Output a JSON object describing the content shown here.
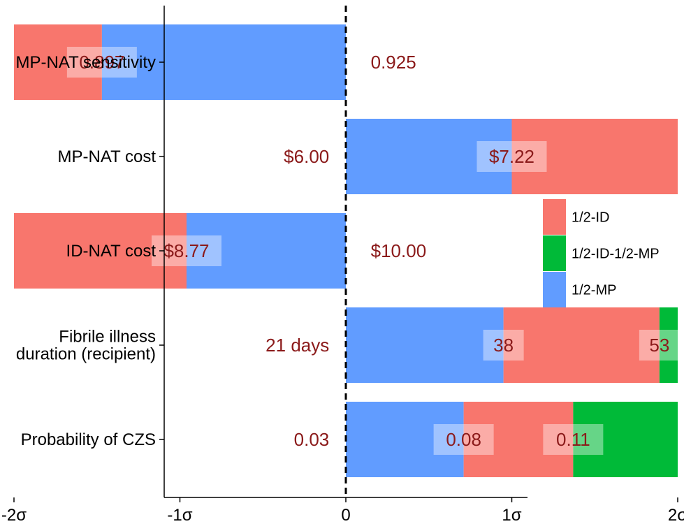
{
  "chart_data": {
    "type": "bar",
    "orientation": "horizontal",
    "xlabel": "",
    "ylabel": "",
    "xlim": [
      -2.2,
      2.2
    ],
    "x_ticks": [
      {
        "value": -2,
        "label": "-2σ"
      },
      {
        "value": -1,
        "label": "-1σ"
      },
      {
        "value": 0,
        "label": "0"
      },
      {
        "value": 1,
        "label": "1σ"
      },
      {
        "value": 2,
        "label": "2σ"
      }
    ],
    "reference_line": {
      "x": 0,
      "style": "dashed"
    },
    "grid": false,
    "legend_position": "right",
    "legend": [
      {
        "name": "1/2-ID",
        "color": "#F8766D"
      },
      {
        "name": "1/2-ID-1/2-MP",
        "color": "#00BA38"
      },
      {
        "name": "1/2-MP",
        "color": "#619CFF"
      }
    ],
    "categories": [
      {
        "label": [
          "MP-NAT sensitivity"
        ],
        "segments": [
          {
            "series": "1/2-ID",
            "from": -2,
            "to": -1.47
          },
          {
            "series": "1/2-MP",
            "from": -1.47,
            "to": 0
          }
        ],
        "annotations": [
          {
            "text": "0.897",
            "x": -1.47,
            "boxed": true
          },
          {
            "text": "0.925",
            "x": 0.15,
            "boxed": false
          }
        ]
      },
      {
        "label": [
          "MP-NAT cost"
        ],
        "segments": [
          {
            "series": "1/2-MP",
            "from": 0,
            "to": 1
          },
          {
            "series": "1/2-ID",
            "from": 1,
            "to": 2
          }
        ],
        "annotations": [
          {
            "text": "$6.00",
            "x": -0.1,
            "boxed": false,
            "anchor": "end"
          },
          {
            "text": "$7.22",
            "x": 1.0,
            "boxed": true
          }
        ]
      },
      {
        "label": [
          "ID-NAT cost"
        ],
        "segments": [
          {
            "series": "1/2-ID",
            "from": -2,
            "to": -0.96
          },
          {
            "series": "1/2-MP",
            "from": -0.96,
            "to": 0
          }
        ],
        "annotations": [
          {
            "text": "$8.77",
            "x": -0.96,
            "boxed": true
          },
          {
            "text": "$10.00",
            "x": 0.15,
            "boxed": false
          }
        ]
      },
      {
        "label": [
          "Fibrile illness",
          "duration (recipient)"
        ],
        "segments": [
          {
            "series": "1/2-MP",
            "from": 0,
            "to": 0.95
          },
          {
            "series": "1/2-ID",
            "from": 0.95,
            "to": 1.89
          },
          {
            "series": "1/2-ID-1/2-MP",
            "from": 1.89,
            "to": 2
          }
        ],
        "annotations": [
          {
            "text": "21 days",
            "x": -0.1,
            "boxed": false,
            "anchor": "end"
          },
          {
            "text": "38",
            "x": 0.95,
            "boxed": true
          },
          {
            "text": "53",
            "x": 1.89,
            "boxed": true
          }
        ]
      },
      {
        "label": [
          "Probability of CZS"
        ],
        "segments": [
          {
            "series": "1/2-MP",
            "from": 0,
            "to": 0.71
          },
          {
            "series": "1/2-ID",
            "from": 0.71,
            "to": 1.37
          },
          {
            "series": "1/2-ID-1/2-MP",
            "from": 1.37,
            "to": 2
          }
        ],
        "annotations": [
          {
            "text": "0.03",
            "x": -0.1,
            "boxed": false,
            "anchor": "end"
          },
          {
            "text": "0.08",
            "x": 0.71,
            "boxed": true
          },
          {
            "text": "0.11",
            "x": 1.37,
            "boxed": true
          }
        ]
      }
    ],
    "annotation_color": "#8B1A1A"
  }
}
